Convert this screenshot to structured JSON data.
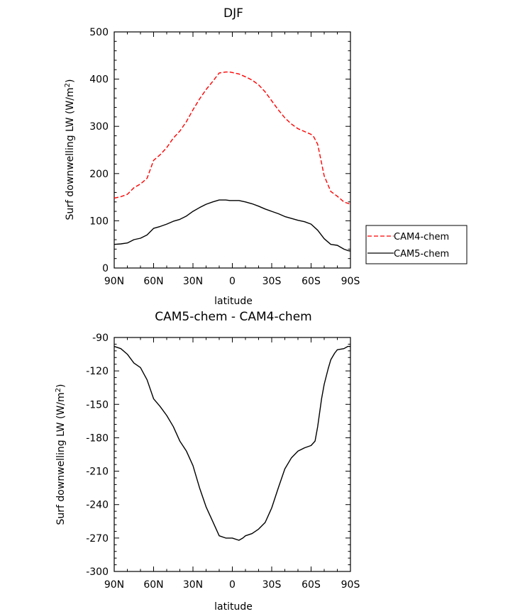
{
  "chart_data": [
    {
      "type": "line",
      "title": "DJF",
      "xlabel": "latitude",
      "ylabel": "Surf downwelling LW (W/m",
      "ylabel_sup": "2",
      "ylabel_end": ")",
      "xlim": [
        90,
        -90
      ],
      "ylim": [
        0,
        500
      ],
      "xticks": [
        90,
        60,
        30,
        0,
        -30,
        -60,
        -90
      ],
      "xtick_labels": [
        "90N",
        "60N",
        "30N",
        "0",
        "30S",
        "60S",
        "90S"
      ],
      "yticks": [
        0,
        100,
        200,
        300,
        400,
        500
      ],
      "ytick_labels": [
        "0",
        "100",
        "200",
        "300",
        "400",
        "500"
      ],
      "legend_position": "right",
      "series": [
        {
          "name": "CAM4-chem",
          "color": "#ff0000",
          "style": "dashed",
          "x": [
            90,
            85,
            80,
            75,
            70,
            65,
            60,
            55,
            50,
            45,
            40,
            35,
            30,
            25,
            20,
            15,
            10,
            5,
            2,
            0,
            -5,
            -10,
            -15,
            -20,
            -25,
            -30,
            -35,
            -40,
            -45,
            -50,
            -55,
            -60,
            -62,
            -65,
            -68,
            -70,
            -75,
            -80,
            -85,
            -90
          ],
          "y": [
            148,
            151,
            156,
            170,
            178,
            190,
            228,
            240,
            255,
            275,
            290,
            310,
            335,
            358,
            378,
            395,
            413,
            415,
            415,
            414,
            411,
            405,
            398,
            388,
            373,
            354,
            335,
            318,
            305,
            295,
            289,
            283,
            278,
            262,
            222,
            195,
            162,
            152,
            140,
            135
          ]
        },
        {
          "name": "CAM5-chem",
          "color": "#000000",
          "style": "solid",
          "x": [
            90,
            85,
            80,
            75,
            70,
            65,
            60,
            55,
            50,
            45,
            40,
            35,
            30,
            25,
            20,
            15,
            10,
            5,
            2,
            0,
            -5,
            -10,
            -15,
            -20,
            -25,
            -30,
            -35,
            -40,
            -45,
            -50,
            -55,
            -60,
            -65,
            -70,
            -75,
            -80,
            -85,
            -88,
            -90
          ],
          "y": [
            50,
            51,
            53,
            60,
            63,
            70,
            84,
            88,
            93,
            99,
            103,
            110,
            120,
            128,
            135,
            140,
            144,
            144,
            143,
            143,
            143,
            140,
            136,
            131,
            125,
            120,
            115,
            109,
            105,
            101,
            98,
            93,
            80,
            62,
            50,
            48,
            40,
            37,
            36
          ]
        }
      ]
    },
    {
      "type": "line",
      "title": "CAM5-chem - CAM4-chem",
      "xlabel": "latitude",
      "ylabel": "Surf downwelling LW (W/m",
      "ylabel_sup": "2",
      "ylabel_end": ")",
      "xlim": [
        90,
        -90
      ],
      "ylim": [
        -300,
        -90
      ],
      "xticks": [
        90,
        60,
        30,
        0,
        -30,
        -60,
        -90
      ],
      "xtick_labels": [
        "90N",
        "60N",
        "30N",
        "0",
        "30S",
        "60S",
        "90S"
      ],
      "yticks": [
        -90,
        -120,
        -150,
        -180,
        -210,
        -240,
        -270,
        -300
      ],
      "ytick_labels": [
        "-90",
        "-120",
        "-150",
        "-180",
        "-210",
        "-240",
        "-270",
        "-300"
      ],
      "series": [
        {
          "name": "CAM5-chem - CAM4-chem",
          "color": "#000000",
          "style": "solid",
          "x": [
            90,
            85,
            80,
            75,
            70,
            65,
            60,
            55,
            50,
            45,
            40,
            35,
            30,
            25,
            20,
            15,
            10,
            5,
            2,
            0,
            -5,
            -8,
            -10,
            -15,
            -20,
            -25,
            -30,
            -35,
            -40,
            -45,
            -50,
            -55,
            -60,
            -63,
            -65,
            -68,
            -70,
            -73,
            -75,
            -78,
            -80,
            -85,
            -88,
            -90
          ],
          "y": [
            -98,
            -100,
            -105,
            -113,
            -117,
            -128,
            -145,
            -152,
            -160,
            -170,
            -183,
            -192,
            -205,
            -225,
            -242,
            -255,
            -268,
            -270,
            -270,
            -270,
            -272,
            -270,
            -268,
            -266,
            -262,
            -256,
            -243,
            -225,
            -208,
            -198,
            -192,
            -189,
            -187,
            -183,
            -170,
            -145,
            -132,
            -118,
            -110,
            -104,
            -101,
            -100,
            -98,
            -98
          ]
        }
      ]
    }
  ]
}
